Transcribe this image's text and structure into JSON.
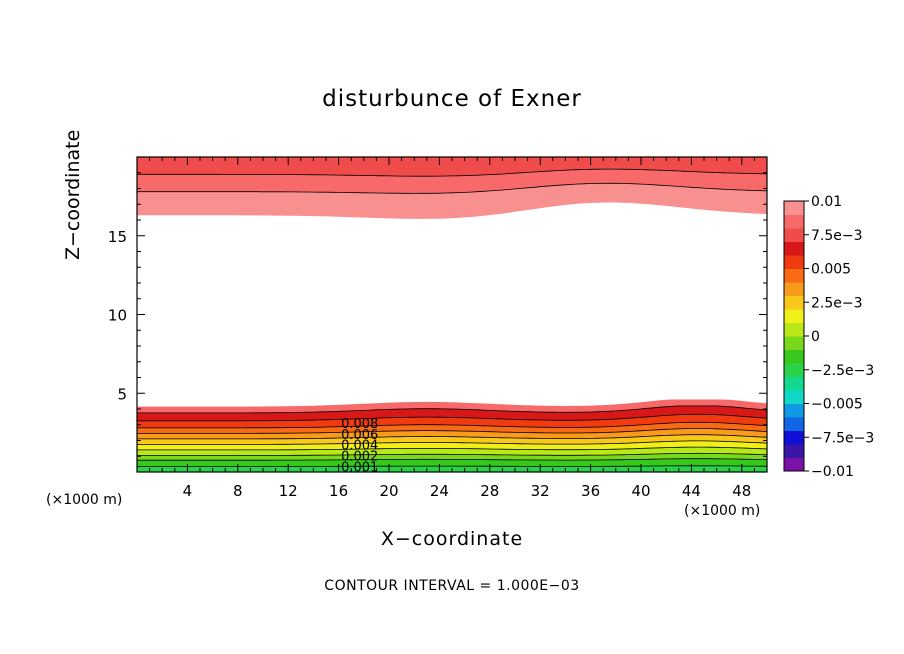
{
  "chart_data": {
    "type": "contour",
    "title": "disturbunce of Exner",
    "xlabel": "X−coordinate",
    "ylabel": "Z−coordinate",
    "x_unit": "(×1000 m)",
    "y_unit": "(×1000 m)",
    "xlim": [
      0,
      50
    ],
    "ylim": [
      0,
      20
    ],
    "x_ticks": [
      4,
      8,
      12,
      16,
      20,
      24,
      28,
      32,
      36,
      40,
      44,
      48
    ],
    "y_ticks": [
      5,
      10,
      15
    ],
    "x_tick_labels": [
      "4",
      "8",
      "12",
      "16",
      "20",
      "24",
      "28",
      "32",
      "36",
      "40",
      "44",
      "48"
    ],
    "y_tick_labels": [
      "5",
      "10",
      "15"
    ],
    "contour_interval_text": "CONTOUR INTERVAL = 1.000E−03",
    "contour_labels": [
      "0.008",
      "0.006",
      "0.004",
      "0.002",
      "0.001"
    ],
    "colorbar": {
      "min": -0.01,
      "max": 0.01,
      "tick_labels": [
        "0.01",
        "7.5e−3",
        "0.005",
        "2.5e−3",
        "0",
        "−2.5e−3",
        "−0.005",
        "−7.5e−3",
        "−0.01"
      ],
      "colors": [
        "#7a12a8",
        "#3a16a6",
        "#1010d8",
        "#1166e8",
        "#119ae4",
        "#10d8c8",
        "#12d890",
        "#2ad24a",
        "#38c81c",
        "#7ad81a",
        "#b8e818",
        "#f0f018",
        "#f8c81a",
        "#f89a1a",
        "#f86a14",
        "#f03a10",
        "#d81818",
        "#f04c4c",
        "#f86a6a",
        "#f89090"
      ]
    },
    "bottom_bands": {
      "levels": [
        0.0,
        0.001,
        0.002,
        0.003,
        0.004,
        0.005,
        0.006,
        0.007,
        0.008,
        0.009,
        0.01
      ],
      "heights_km": [
        0.35,
        0.75,
        1.05,
        1.4,
        1.75,
        2.1,
        2.45,
        2.8,
        3.25,
        3.75
      ],
      "colors": [
        "#2ad24a",
        "#38c81c",
        "#7ad81a",
        "#b8e818",
        "#f0f018",
        "#f8c81a",
        "#f89a1a",
        "#f86a14",
        "#f03a10",
        "#d81818",
        "#f86a6a"
      ]
    },
    "top_bands": {
      "levels": [
        0.01,
        0.009,
        0.008
      ],
      "heights_km": [
        16.3,
        17.8,
        18.9
      ],
      "colors": [
        "#f89090",
        "#f86a6a",
        "#f04c4c"
      ]
    },
    "hill_bumps": [
      {
        "center_x": 23,
        "width": 5
      },
      {
        "center_x": 44.5,
        "width": 4
      }
    ],
    "top_bump": {
      "center_x": 37,
      "width": 6
    }
  }
}
